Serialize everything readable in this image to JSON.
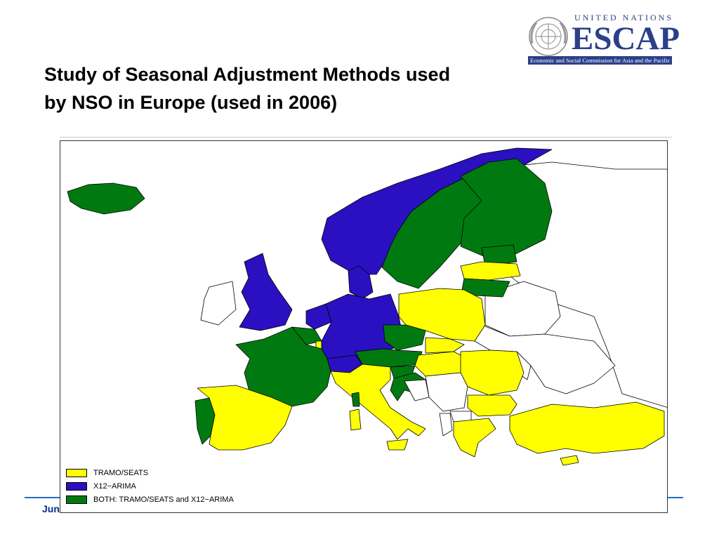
{
  "slide": {
    "title_line1": "Study of Seasonal Adjustment Methods used",
    "title_line2": "by NSO in Europe (used in 2006)",
    "footer_text": "Jun"
  },
  "logo": {
    "top_text": "UNITED NATIONS",
    "main_text": "ESCAP",
    "sub_text": "Economic and Social Commission for Asia and the Pacific",
    "colors": {
      "text": "#2b3f8a"
    }
  },
  "map": {
    "colors": {
      "tramo_seats": "#ffff00",
      "x12_arima": "#2a10c0",
      "both": "#007a10",
      "other": "#ffffff",
      "border": "#000000"
    },
    "legend": [
      {
        "label": "TRAMO/SEATS",
        "color_key": "tramo_seats"
      },
      {
        "label": "X12−ARIMA",
        "color_key": "x12_arima"
      },
      {
        "label": "BOTH: TRAMO/SEATS and X12−ARIMA",
        "color_key": "both"
      }
    ],
    "countries": [
      {
        "name": "Iceland",
        "method": "both"
      },
      {
        "name": "Norway",
        "method": "x12_arima"
      },
      {
        "name": "Sweden",
        "method": "both"
      },
      {
        "name": "Finland",
        "method": "both"
      },
      {
        "name": "Estonia",
        "method": "both"
      },
      {
        "name": "Latvia",
        "method": "tramo_seats"
      },
      {
        "name": "Lithuania",
        "method": "both"
      },
      {
        "name": "United Kingdom",
        "method": "x12_arima"
      },
      {
        "name": "Ireland",
        "method": "other"
      },
      {
        "name": "Denmark",
        "method": "x12_arima"
      },
      {
        "name": "Netherlands",
        "method": "x12_arima"
      },
      {
        "name": "Belgium",
        "method": "both"
      },
      {
        "name": "Luxembourg",
        "method": "tramo_seats"
      },
      {
        "name": "Germany",
        "method": "x12_arima"
      },
      {
        "name": "Poland",
        "method": "tramo_seats"
      },
      {
        "name": "Czech Republic",
        "method": "both"
      },
      {
        "name": "Slovakia",
        "method": "tramo_seats"
      },
      {
        "name": "Austria",
        "method": "both"
      },
      {
        "name": "Switzerland",
        "method": "x12_arima"
      },
      {
        "name": "Hungary",
        "method": "tramo_seats"
      },
      {
        "name": "Slovenia",
        "method": "both"
      },
      {
        "name": "Croatia",
        "method": "both"
      },
      {
        "name": "France",
        "method": "both"
      },
      {
        "name": "Spain",
        "method": "tramo_seats"
      },
      {
        "name": "Portugal",
        "method": "both"
      },
      {
        "name": "Italy",
        "method": "tramo_seats"
      },
      {
        "name": "Romania",
        "method": "tramo_seats"
      },
      {
        "name": "Bulgaria",
        "method": "tramo_seats"
      },
      {
        "name": "Greece",
        "method": "tramo_seats"
      },
      {
        "name": "Turkey",
        "method": "tramo_seats"
      },
      {
        "name": "Cyprus",
        "method": "tramo_seats"
      },
      {
        "name": "Belarus",
        "method": "other"
      },
      {
        "name": "Ukraine",
        "method": "other"
      },
      {
        "name": "Russia",
        "method": "other"
      },
      {
        "name": "Serbia",
        "method": "other"
      },
      {
        "name": "Bosnia",
        "method": "other"
      },
      {
        "name": "Moldova",
        "method": "other"
      },
      {
        "name": "Albania",
        "method": "other"
      },
      {
        "name": "Macedonia",
        "method": "other"
      }
    ]
  }
}
